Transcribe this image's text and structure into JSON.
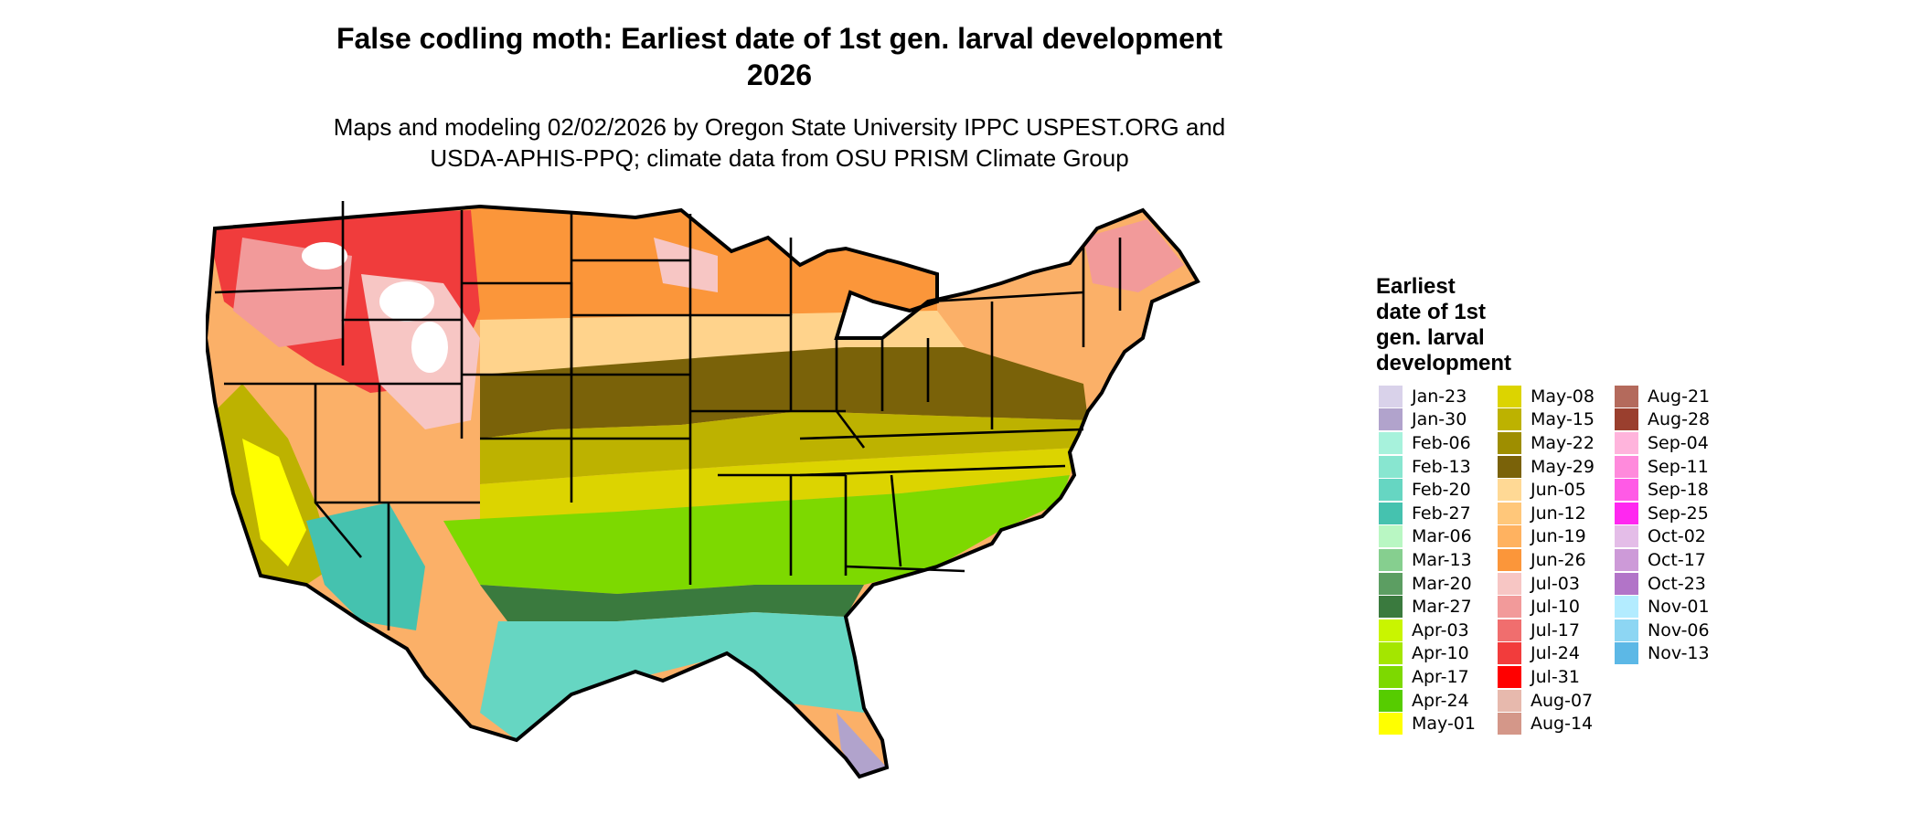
{
  "title": "False codling moth: Earliest date of 1st gen. larval development",
  "title_year": "2026",
  "subtitle_line1": "Maps and modeling 02/02/2026 by Oregon State University IPPC USPEST.ORG and",
  "subtitle_line2": "USDA-APHIS-PPQ; climate data from OSU PRISM Climate Group",
  "legend": {
    "title_lines": [
      "Earliest",
      "date of 1st",
      "gen. larval",
      "development"
    ],
    "columns": [
      [
        {
          "label": "Jan-23",
          "color": "#d9d2ea"
        },
        {
          "label": "Jan-30",
          "color": "#b1a3cc"
        },
        {
          "label": "Feb-06",
          "color": "#a7f2dc"
        },
        {
          "label": "Feb-13",
          "color": "#88e6d0"
        },
        {
          "label": "Feb-20",
          "color": "#66d6c2"
        },
        {
          "label": "Feb-27",
          "color": "#45c2af"
        },
        {
          "label": "Mar-06",
          "color": "#b9f7c3"
        },
        {
          "label": "Mar-13",
          "color": "#86cf8f"
        },
        {
          "label": "Mar-20",
          "color": "#5c9e62"
        },
        {
          "label": "Mar-27",
          "color": "#3a7a3e"
        },
        {
          "label": "Apr-03",
          "color": "#c9f500"
        },
        {
          "label": "Apr-10",
          "color": "#a4e600"
        },
        {
          "label": "Apr-17",
          "color": "#7dd900"
        },
        {
          "label": "Apr-24",
          "color": "#56cc00"
        },
        {
          "label": "May-01",
          "color": "#ffff00"
        }
      ],
      [
        {
          "label": "May-08",
          "color": "#dcd400"
        },
        {
          "label": "May-15",
          "color": "#bdb200"
        },
        {
          "label": "May-22",
          "color": "#9e8e00"
        },
        {
          "label": "May-29",
          "color": "#7a6209"
        },
        {
          "label": "Jun-05",
          "color": "#ffd995"
        },
        {
          "label": "Jun-12",
          "color": "#ffc77a"
        },
        {
          "label": "Jun-19",
          "color": "#ffb260"
        },
        {
          "label": "Jun-26",
          "color": "#fb963a"
        },
        {
          "label": "Jul-03",
          "color": "#f7c6c4"
        },
        {
          "label": "Jul-10",
          "color": "#f29a9a"
        },
        {
          "label": "Jul-17",
          "color": "#f06e6e"
        },
        {
          "label": "Jul-24",
          "color": "#f23c3c"
        },
        {
          "label": "Jul-31",
          "color": "#ff0000"
        },
        {
          "label": "Aug-07",
          "color": "#e7b9ad"
        },
        {
          "label": "Aug-14",
          "color": "#d49789"
        }
      ],
      [
        {
          "label": "Aug-21",
          "color": "#b46a5c"
        },
        {
          "label": "Aug-28",
          "color": "#9a3f2e"
        },
        {
          "label": "Sep-04",
          "color": "#ffb4dc"
        },
        {
          "label": "Sep-11",
          "color": "#ff8adc"
        },
        {
          "label": "Sep-18",
          "color": "#ff5ae6"
        },
        {
          "label": "Sep-25",
          "color": "#ff28f0"
        },
        {
          "label": "Oct-02",
          "color": "#e4bde8"
        },
        {
          "label": "Oct-17",
          "color": "#cd9ad8"
        },
        {
          "label": "Oct-23",
          "color": "#b274c8"
        },
        {
          "label": "Nov-01",
          "color": "#b3ecff"
        },
        {
          "label": "Nov-06",
          "color": "#8dd6f3"
        },
        {
          "label": "Nov-13",
          "color": "#5cb8e6"
        }
      ]
    ]
  },
  "map_colors": {
    "background_land": "#fbb068",
    "northwest_high": "#f03c3c",
    "northwest_mid": "#f29a9a",
    "northern_plains": "#fb963a",
    "central_plains": "#ffd38c",
    "midwest_band": "#7a6209",
    "mid_south": "#bdb200",
    "southeast_upper": "#dcd400",
    "southeast_green": "#7dd900",
    "gulf_coast": "#66d6c2",
    "florida_tip": "#b1a3cc",
    "southwest_desert": "#45c2af",
    "outline": "#000000",
    "snow": "#ffffff"
  }
}
